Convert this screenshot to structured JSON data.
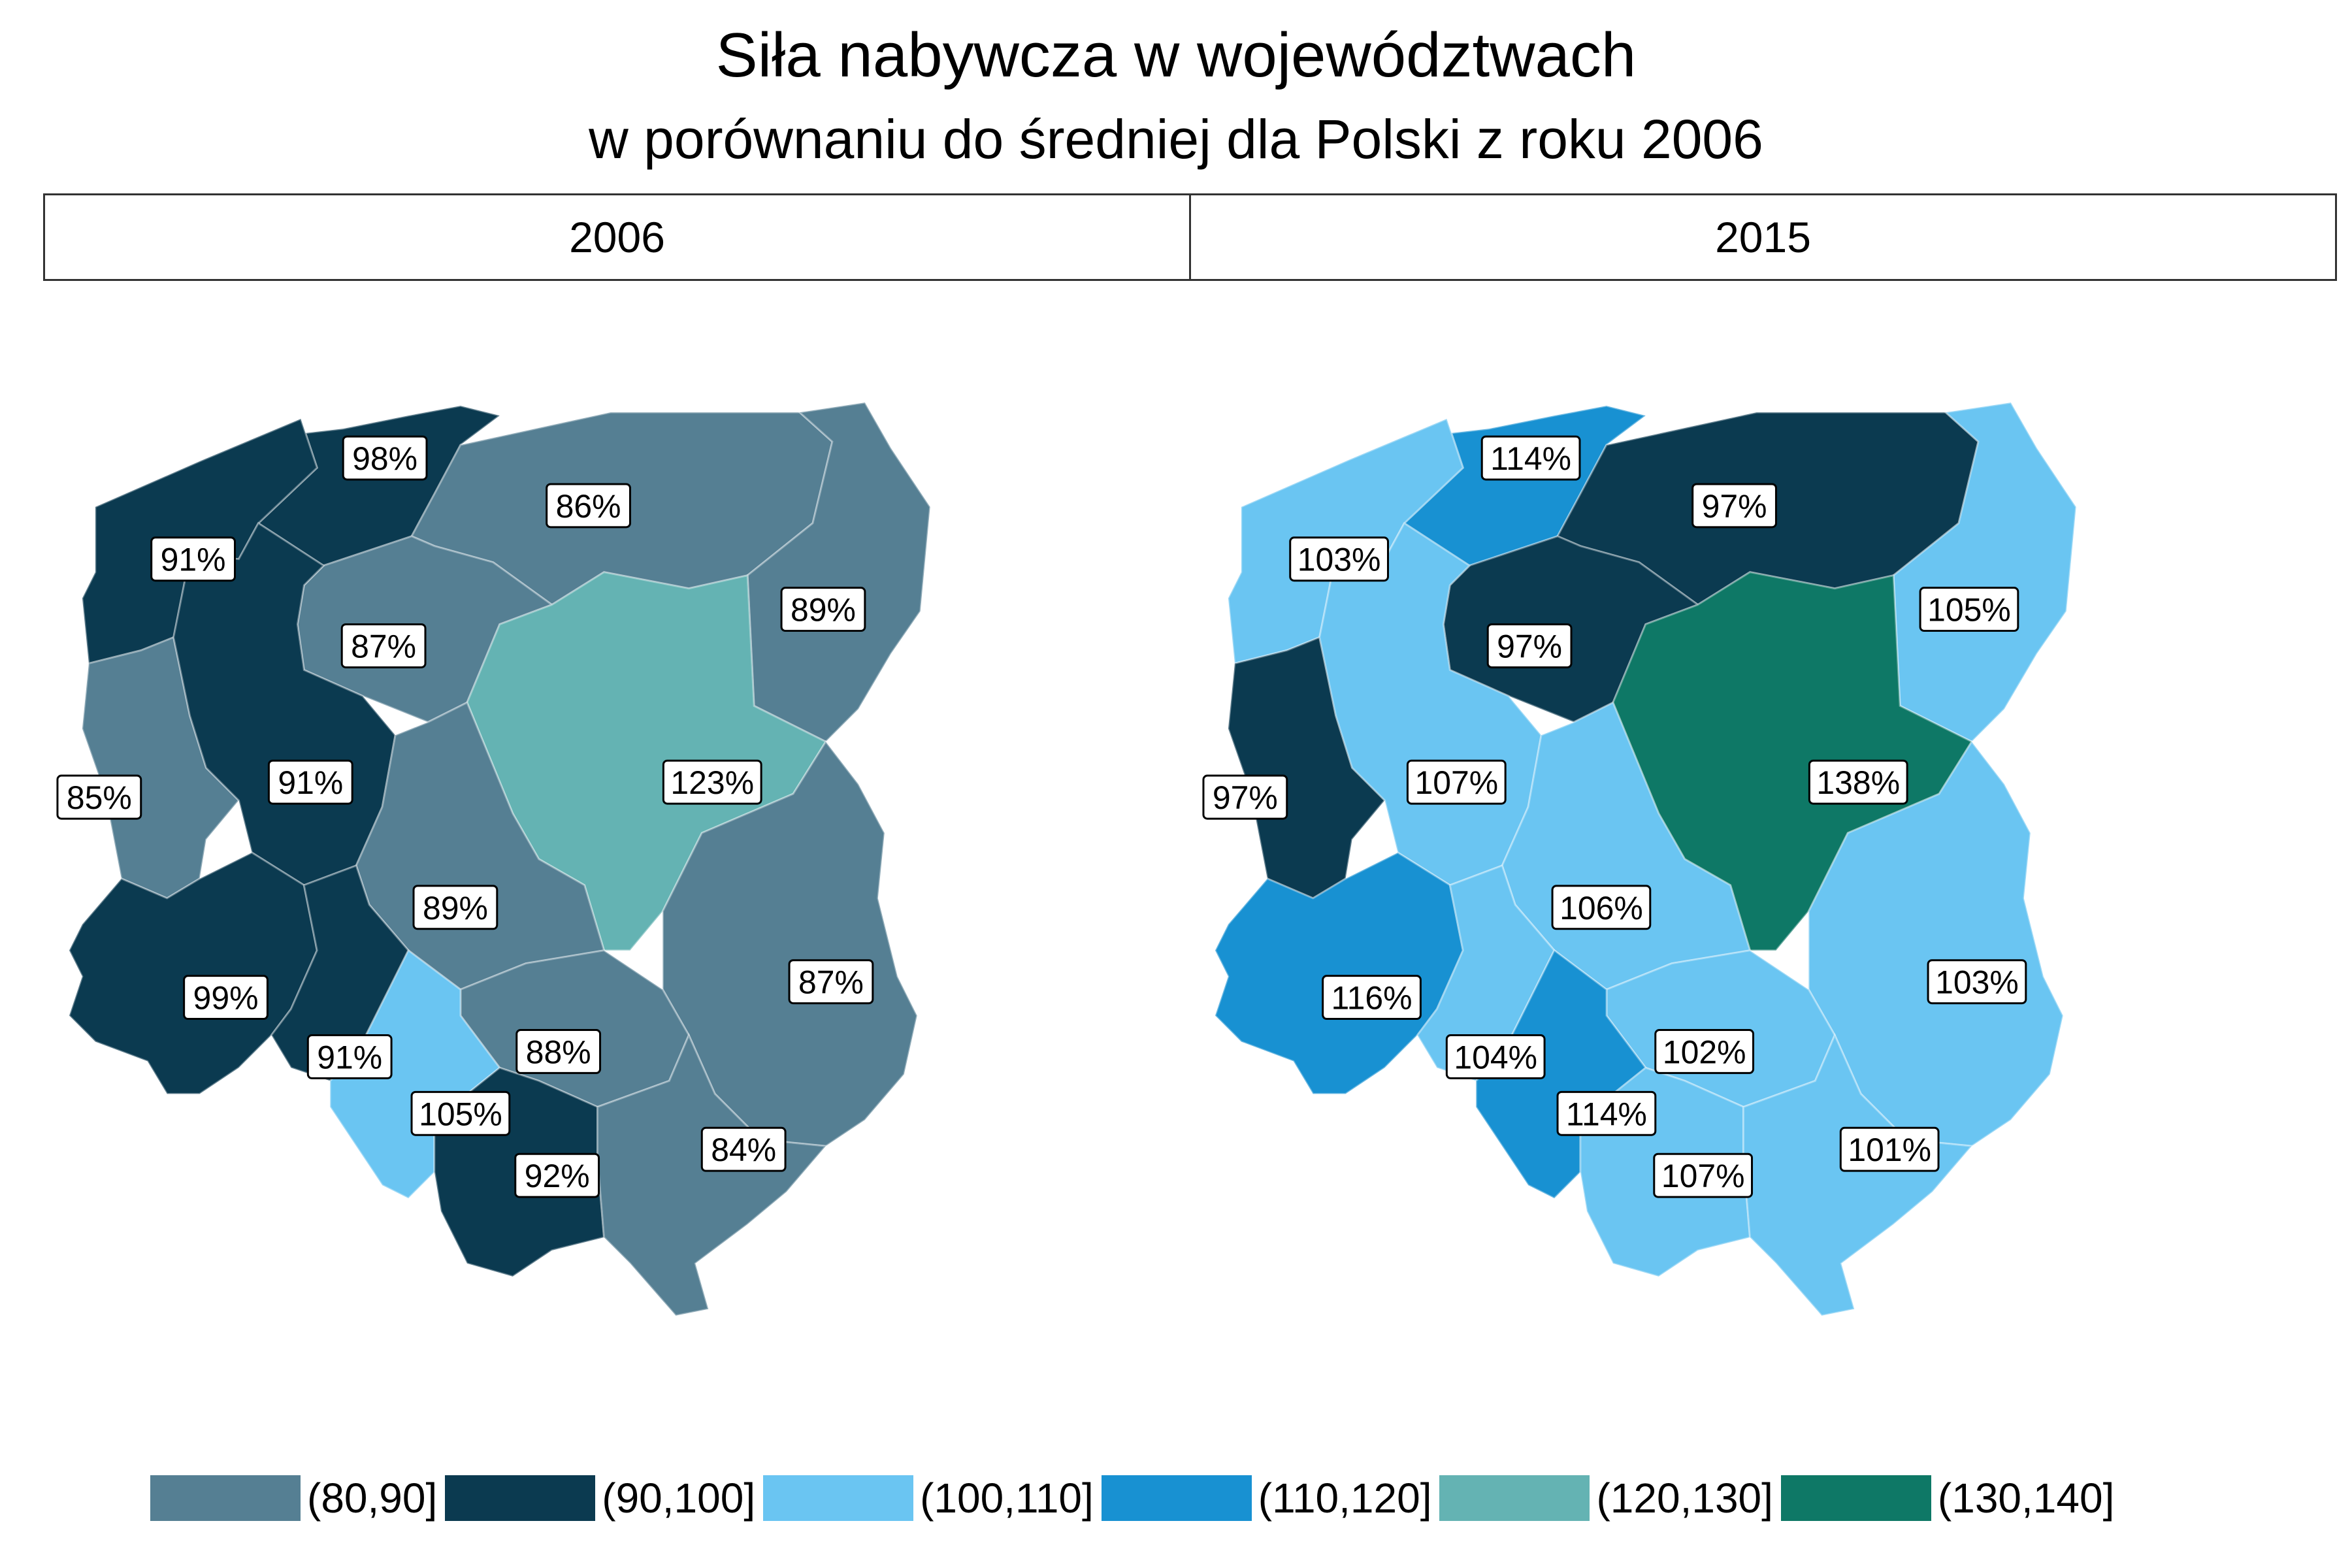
{
  "title": "Siła nabywcza w województwach",
  "subtitle": "w porównaniu do średniej dla Polski z roku 2006",
  "colors": {
    "80_90": "#557f93",
    "90_100": "#0b3a50",
    "100_110": "#6ac5f2",
    "110_120": "#1891d2",
    "120_130": "#64b3b3",
    "130_140": "#0e7866"
  },
  "legend": [
    {
      "label": "(80,90]",
      "color_key": "80_90"
    },
    {
      "label": "(90,100]",
      "color_key": "90_100"
    },
    {
      "label": "(100,110]",
      "color_key": "100_110"
    },
    {
      "label": "(110,120]",
      "color_key": "110_120"
    },
    {
      "label": "(120,130]",
      "color_key": "120_130"
    },
    {
      "label": "(130,140]",
      "color_key": "130_140"
    }
  ],
  "panels": [
    {
      "year": "2006",
      "regions": [
        {
          "name": "pomorskie",
          "label": "98%",
          "color_key": "90_100"
        },
        {
          "name": "zachodniopomorskie",
          "label": "91%",
          "color_key": "90_100"
        },
        {
          "name": "warminsko-mazurskie",
          "label": "86%",
          "color_key": "80_90"
        },
        {
          "name": "podlaskie",
          "label": "89%",
          "color_key": "80_90"
        },
        {
          "name": "kujawsko-pomorskie",
          "label": "87%",
          "color_key": "80_90"
        },
        {
          "name": "lubuskie",
          "label": "85%",
          "color_key": "80_90"
        },
        {
          "name": "wielkopolskie",
          "label": "91%",
          "color_key": "90_100"
        },
        {
          "name": "mazowieckie",
          "label": "123%",
          "color_key": "120_130"
        },
        {
          "name": "lodzkie",
          "label": "89%",
          "color_key": "80_90"
        },
        {
          "name": "lubelskie",
          "label": "87%",
          "color_key": "80_90"
        },
        {
          "name": "dolnoslaskie",
          "label": "99%",
          "color_key": "90_100"
        },
        {
          "name": "opolskie",
          "label": "91%",
          "color_key": "90_100"
        },
        {
          "name": "swietokrzyskie",
          "label": "88%",
          "color_key": "80_90"
        },
        {
          "name": "slaskie",
          "label": "105%",
          "color_key": "100_110"
        },
        {
          "name": "malopolskie",
          "label": "92%",
          "color_key": "90_100"
        },
        {
          "name": "podkarpackie",
          "label": "84%",
          "color_key": "80_90"
        }
      ]
    },
    {
      "year": "2015",
      "regions": [
        {
          "name": "pomorskie",
          "label": "114%",
          "color_key": "110_120"
        },
        {
          "name": "zachodniopomorskie",
          "label": "103%",
          "color_key": "100_110"
        },
        {
          "name": "warminsko-mazurskie",
          "label": "97%",
          "color_key": "90_100"
        },
        {
          "name": "podlaskie",
          "label": "105%",
          "color_key": "100_110"
        },
        {
          "name": "kujawsko-pomorskie",
          "label": "97%",
          "color_key": "90_100"
        },
        {
          "name": "lubuskie",
          "label": "97%",
          "color_key": "90_100"
        },
        {
          "name": "wielkopolskie",
          "label": "107%",
          "color_key": "100_110"
        },
        {
          "name": "mazowieckie",
          "label": "138%",
          "color_key": "130_140"
        },
        {
          "name": "lodzkie",
          "label": "106%",
          "color_key": "100_110"
        },
        {
          "name": "lubelskie",
          "label": "103%",
          "color_key": "100_110"
        },
        {
          "name": "dolnoslaskie",
          "label": "116%",
          "color_key": "110_120"
        },
        {
          "name": "opolskie",
          "label": "104%",
          "color_key": "100_110"
        },
        {
          "name": "swietokrzyskie",
          "label": "102%",
          "color_key": "100_110"
        },
        {
          "name": "slaskie",
          "label": "114%",
          "color_key": "110_120"
        },
        {
          "name": "malopolskie",
          "label": "107%",
          "color_key": "100_110"
        },
        {
          "name": "podkarpackie",
          "label": "101%",
          "color_key": "100_110"
        }
      ]
    }
  ]
}
